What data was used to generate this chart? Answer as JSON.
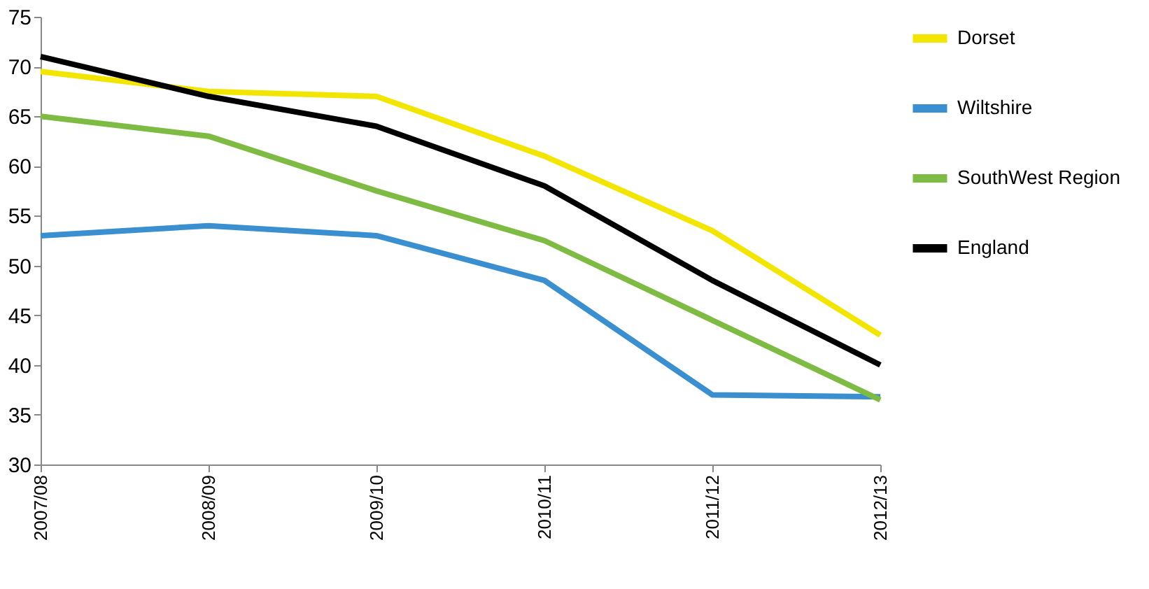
{
  "chart_data": {
    "type": "line",
    "categories": [
      "2007/08",
      "2008/09",
      "2009/10",
      "2010/11",
      "2011/12",
      "2012/13"
    ],
    "series": [
      {
        "name": "Dorset",
        "color": "#f2e600",
        "values": [
          69.5,
          67.5,
          67,
          61,
          53.5,
          43
        ]
      },
      {
        "name": "Wiltshire",
        "color": "#3a8fd0",
        "values": [
          53,
          54,
          53,
          48.5,
          37,
          36.8
        ]
      },
      {
        "name": "SouthWest Region",
        "color": "#7dbb42",
        "values": [
          65,
          63,
          57.5,
          52.5,
          44.5,
          36.5
        ]
      },
      {
        "name": "England",
        "color": "#000000",
        "values": [
          71,
          67,
          64,
          58,
          48.5,
          40
        ]
      }
    ],
    "ylim": [
      30,
      75
    ],
    "yticks": [
      30,
      35,
      40,
      45,
      50,
      55,
      60,
      65,
      70,
      75
    ],
    "grid": false,
    "legend": "right",
    "marker": "none",
    "line_style": "solid"
  }
}
